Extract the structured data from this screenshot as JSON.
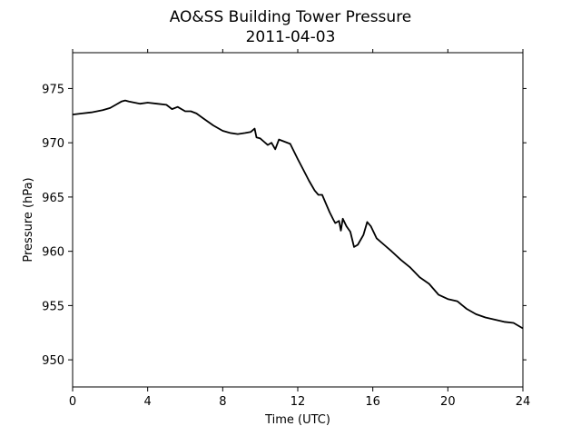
{
  "chart_data": {
    "type": "line",
    "title": "AO&SS Building Tower Pressure",
    "subtitle": "2011-04-03",
    "xlabel": "Time (UTC)",
    "ylabel": "Pressure (hPa)",
    "xlim": [
      0,
      24
    ],
    "ylim": [
      947.5,
      978.3
    ],
    "xticks": [
      0,
      4,
      8,
      12,
      16,
      20,
      24
    ],
    "yticks": [
      950,
      955,
      960,
      965,
      970,
      975
    ],
    "grid": false,
    "line_color": "#000000",
    "series": [
      {
        "x": [
          0,
          0.5,
          1,
          1.3,
          1.6,
          2.0,
          2.3,
          2.6,
          2.8,
          3.0,
          3.3,
          3.6,
          4.0,
          4.5,
          5.0,
          5.3,
          5.6,
          6.0,
          6.3,
          6.6,
          7.0,
          7.5,
          8.0,
          8.4,
          8.8,
          9.2,
          9.5,
          9.7,
          9.8,
          10.0,
          10.2,
          10.4,
          10.6,
          10.8,
          11.0,
          11.3,
          11.6,
          12.0,
          12.3,
          12.6,
          12.9,
          13.1,
          13.3,
          13.5,
          13.7,
          13.9,
          14.0,
          14.2,
          14.3,
          14.4,
          14.6,
          14.8,
          15.0,
          15.2,
          15.5,
          15.7,
          15.9,
          16.2,
          16.6,
          17.0,
          17.5,
          18.0,
          18.5,
          19.0,
          19.5,
          20.0,
          20.5,
          21.0,
          21.5,
          22.0,
          22.5,
          23.0,
          23.5,
          23.8,
          24.0
        ],
        "y": [
          972.6,
          972.7,
          972.8,
          972.9,
          973.0,
          973.2,
          973.5,
          973.8,
          973.9,
          973.8,
          973.7,
          973.6,
          973.7,
          973.6,
          973.5,
          973.1,
          973.3,
          972.9,
          972.9,
          972.7,
          972.2,
          971.6,
          971.1,
          970.9,
          970.8,
          970.9,
          971.0,
          971.3,
          970.5,
          970.4,
          970.1,
          969.8,
          970.0,
          969.4,
          970.3,
          970.1,
          969.9,
          968.5,
          967.5,
          966.5,
          965.6,
          965.2,
          965.2,
          964.4,
          963.6,
          962.9,
          962.6,
          962.8,
          961.9,
          963.0,
          962.3,
          961.8,
          960.4,
          960.6,
          961.5,
          962.7,
          962.3,
          961.2,
          960.6,
          960.0,
          959.2,
          958.5,
          957.6,
          957.0,
          956.0,
          955.6,
          955.4,
          954.7,
          954.2,
          953.9,
          953.7,
          953.5,
          953.4,
          953.1,
          952.9
        ]
      }
    ]
  }
}
